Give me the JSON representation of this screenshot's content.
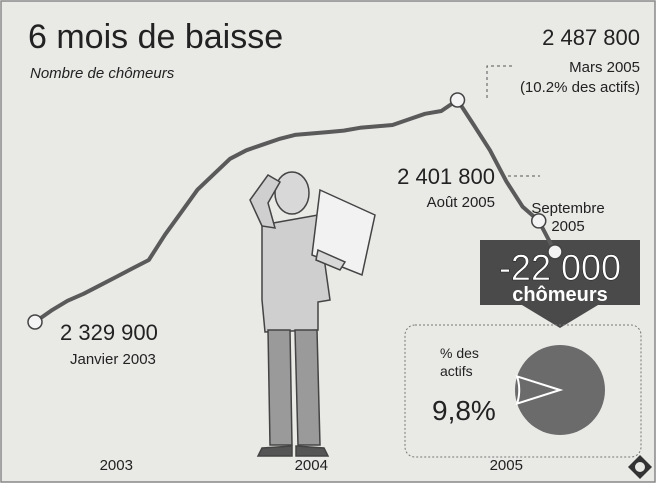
{
  "chart_data": [
    {
      "type": "line",
      "title": "6 mois de baisse",
      "subtitle": "Nombre de chômeurs",
      "categories": [
        null,
        null,
        null,
        null,
        null,
        "2003",
        null,
        null,
        null,
        null,
        null,
        null,
        null,
        null,
        null,
        null,
        null,
        "2004",
        null,
        null,
        null,
        null,
        null,
        null,
        null,
        null,
        null,
        null,
        null,
        "2005",
        null,
        null,
        null
      ],
      "values": [
        2329900,
        2338000,
        2345000,
        2350000,
        2356000,
        2362000,
        2368000,
        2374000,
        2392000,
        2408000,
        2424000,
        2435000,
        2446000,
        2452000,
        2456000,
        2460000,
        2463000,
        2464000,
        2465000,
        2466000,
        2468000,
        2469000,
        2470000,
        2474000,
        2478000,
        2480000,
        2487800,
        2470000,
        2452000,
        2430000,
        2412000,
        2401800,
        2379800
      ],
      "color": "#5a5a5a",
      "annotations": [
        {
          "lines": [
            "2 329 900",
            "Janvier 2003"
          ]
        },
        {
          "lines": [
            "2 487 800",
            "Mars 2005",
            "(10.2% des actifs)"
          ]
        },
        {
          "lines": [
            "2 401 800",
            "Août 2005"
          ]
        },
        {
          "lines": [
            "Septembre",
            "2005"
          ]
        }
      ],
      "change": {
        "value_label": "-22 000",
        "unit": "chômeurs"
      }
    },
    {
      "type": "pie",
      "title": "% des actifs",
      "values": [
        9.8
      ],
      "value_labels": [
        "9,8%"
      ],
      "color": "#6b6b6b"
    }
  ]
}
